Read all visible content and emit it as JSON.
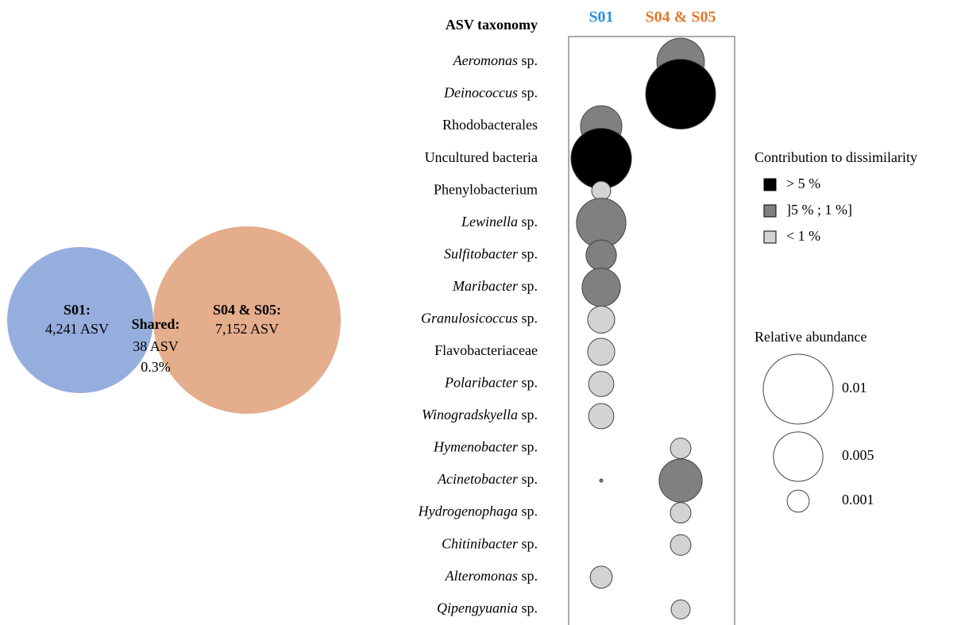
{
  "chart_data": {
    "type": "bubble",
    "title": "ASV taxonomy",
    "venn": {
      "sets": [
        {
          "label": "S01:",
          "count": "4,241 ASV",
          "color": "#8faadc"
        },
        {
          "label": "S04 & S05:",
          "count": "7,152 ASV",
          "color": "#e3a986"
        }
      ],
      "shared": {
        "label": "Shared:",
        "count": "38 ASV",
        "percent": "0.3%"
      }
    },
    "categories": [
      "Aeromonas sp.",
      "Deinococcus sp.",
      "Rhodobacterales",
      "Uncultured bacteria",
      "Phenylobacterium",
      "Lewinella sp.",
      "Sulfitobacter sp.",
      "Maribacter sp.",
      "Granulosicoccus sp.",
      "Flavobacteriaceae",
      "Polaribacter sp.",
      "Winogradskyella sp.",
      "Hymenobacter sp.",
      "Acinetobacter sp.",
      "Hydrogenophaga sp.",
      "Chitinibacter sp.",
      "Alteromonas sp.",
      "Qipengyuania sp."
    ],
    "series": [
      {
        "name": "S01",
        "color": "#2e8fe0",
        "values": [
          null,
          null,
          0.0035,
          0.0075,
          0.00074,
          0.005,
          0.0019,
          0.003,
          0.0015,
          0.0015,
          0.0013,
          0.0013,
          null,
          2e-05,
          null,
          null,
          0.001,
          null
        ],
        "classes": [
          null,
          null,
          1,
          0,
          2,
          1,
          1,
          1,
          2,
          2,
          2,
          2,
          null,
          1,
          null,
          null,
          2,
          null
        ]
      },
      {
        "name": "S04 & S05",
        "color": "#e07a2e",
        "values": [
          0.0046,
          0.01,
          null,
          null,
          null,
          null,
          null,
          null,
          null,
          null,
          null,
          null,
          0.00087,
          0.0038,
          0.00087,
          0.00087,
          null,
          0.00074
        ],
        "classes": [
          1,
          0,
          null,
          null,
          null,
          null,
          null,
          null,
          null,
          null,
          null,
          null,
          2,
          1,
          2,
          2,
          null,
          2
        ]
      }
    ],
    "color_legend": {
      "title": "Contribution to dissimilarity",
      "items": [
        {
          "label": "> 5 %",
          "color": "#000000"
        },
        {
          "label": "]5 % ; 1 %]",
          "color": "#808080"
        },
        {
          "label": "< 1 %",
          "color": "#d3d3d3"
        }
      ]
    },
    "size_legend": {
      "title": "Relative abundance",
      "values": [
        0.01,
        0.005,
        0.001
      ]
    }
  }
}
